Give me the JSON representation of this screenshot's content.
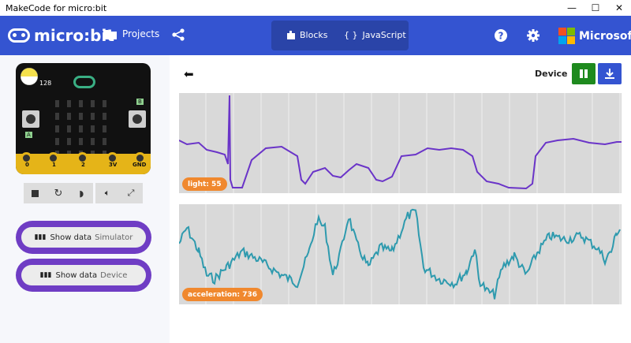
{
  "window": {
    "title": "MakeCode for micro:bit",
    "minimize": "—",
    "maximize": "☐",
    "close": "✕"
  },
  "menubar": {
    "logo_text": "micro:bit",
    "projects_label": "Projects",
    "blocks_label": "Blocks",
    "javascript_label": "JavaScript",
    "microsoft_label": "Microsoft",
    "bg_color": "#3454D1"
  },
  "simulator": {
    "light_level": "128",
    "pin_labels": [
      "0",
      "1",
      "2",
      "3V",
      "GND"
    ],
    "button_a": "A",
    "button_b": "B",
    "controls": [
      "stop-icon",
      "restart-icon",
      "slowmo-icon",
      "sound-icon",
      "fullscreen-icon"
    ],
    "show_data_label": "Show data",
    "show_data_simulator": "Simulator",
    "show_data_device": "Device"
  },
  "console": {
    "source_label": "Device",
    "charts": [
      {
        "badge": "light: 55",
        "color": "#6A34C8"
      },
      {
        "badge": "acceleration: 736",
        "color": "#2E9AAE"
      }
    ]
  }
}
